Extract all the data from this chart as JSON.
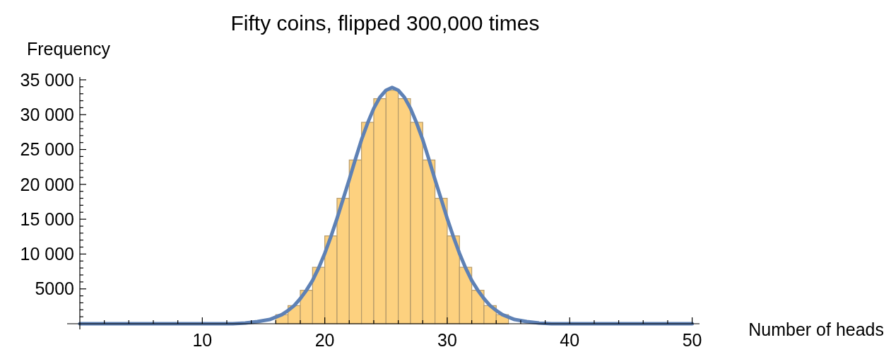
{
  "chart_data": {
    "type": "histogram",
    "title": "Fifty coins, flipped 300,000 times",
    "xlabel": "Number of heads",
    "ylabel": "Frequency",
    "series": [
      {
        "color": "#fdd17f",
        "bins": [
          16,
          17,
          18,
          19,
          20,
          21,
          22,
          23,
          24,
          25,
          26,
          27,
          28,
          29,
          30,
          31,
          32,
          33,
          34,
          35
        ],
        "values": [
          1300,
          2600,
          4800,
          8100,
          12600,
          18000,
          23500,
          28900,
          32300,
          33500,
          32300,
          28900,
          23500,
          18000,
          12600,
          8100,
          4800,
          2600,
          1300
        ]
      },
      {
        "type": "line",
        "color": "#5e81b5",
        "x": [
          0,
          5,
          10,
          12.5,
          13.5,
          14.5,
          15.5,
          16.5,
          17,
          17.5,
          18,
          18.5,
          19,
          19.5,
          20,
          20.5,
          21,
          21.5,
          22,
          22.5,
          23,
          23.5,
          24,
          24.5,
          25,
          25.5,
          26,
          26.5,
          27,
          27.5,
          28,
          28.5,
          29,
          29.5,
          30,
          30.5,
          31,
          31.5,
          32,
          32.5,
          33,
          33.5,
          34,
          34.5,
          35.5,
          36.5,
          37.5,
          38.5,
          40,
          45,
          50
        ],
        "values": [
          0,
          0,
          0,
          0,
          100,
          300,
          600,
          1300,
          1900,
          2600,
          3600,
          4800,
          6200,
          8000,
          10100,
          12500,
          15100,
          17900,
          20700,
          23600,
          26400,
          28800,
          30900,
          32500,
          33500,
          33900,
          33500,
          32500,
          30900,
          28800,
          26400,
          23600,
          20700,
          17900,
          15100,
          12500,
          10100,
          8000,
          6200,
          4800,
          3600,
          2600,
          1900,
          1300,
          600,
          300,
          100,
          0,
          0,
          0,
          0
        ]
      }
    ],
    "xlim": [
      0,
      50.6
    ],
    "ylim": [
      0,
      35400
    ],
    "xticks": [
      {
        "value": 2,
        "label": null
      },
      {
        "value": 4,
        "label": null
      },
      {
        "value": 6,
        "label": null
      },
      {
        "value": 8,
        "label": null
      },
      10,
      {
        "value": 12,
        "label": null
      },
      {
        "value": 14,
        "label": null
      },
      {
        "value": 16,
        "label": null
      },
      {
        "value": 18,
        "label": null
      },
      20,
      {
        "value": 22,
        "label": null
      },
      {
        "value": 24,
        "label": null
      },
      {
        "value": 26,
        "label": null
      },
      {
        "value": 28,
        "label": null
      },
      30,
      {
        "value": 32,
        "label": null
      },
      {
        "value": 34,
        "label": null
      },
      {
        "value": 36,
        "label": null
      },
      {
        "value": 38,
        "label": null
      },
      40,
      {
        "value": 42,
        "label": null
      },
      {
        "value": 44,
        "label": null
      },
      {
        "value": 46,
        "label": null
      },
      {
        "value": 48,
        "label": null
      },
      50
    ],
    "yticks": [
      {
        "value": 1000,
        "label": null
      },
      {
        "value": 2000,
        "label": null
      },
      {
        "value": 3000,
        "label": null
      },
      {
        "value": 4000,
        "label": null
      },
      5000,
      {
        "value": 6000,
        "label": null
      },
      {
        "value": 7000,
        "label": null
      },
      {
        "value": 8000,
        "label": null
      },
      {
        "value": 9000,
        "label": null
      },
      {
        "value": 10000,
        "label": "10 000"
      },
      {
        "value": 11000,
        "label": null
      },
      {
        "value": 12000,
        "label": null
      },
      {
        "value": 13000,
        "label": null
      },
      {
        "value": 14000,
        "label": null
      },
      {
        "value": 15000,
        "label": "15 000"
      },
      {
        "value": 16000,
        "label": null
      },
      {
        "value": 17000,
        "label": null
      },
      {
        "value": 18000,
        "label": null
      },
      {
        "value": 19000,
        "label": null
      },
      {
        "value": 20000,
        "label": "20 000"
      },
      {
        "value": 21000,
        "label": null
      },
      {
        "value": 22000,
        "label": null
      },
      {
        "value": 23000,
        "label": null
      },
      {
        "value": 24000,
        "label": null
      },
      {
        "value": 25000,
        "label": "25 000"
      },
      {
        "value": 26000,
        "label": null
      },
      {
        "value": 27000,
        "label": null
      },
      {
        "value": 28000,
        "label": null
      },
      {
        "value": 29000,
        "label": null
      },
      {
        "value": 30000,
        "label": "30 000"
      },
      {
        "value": 31000,
        "label": null
      },
      {
        "value": 32000,
        "label": null
      },
      {
        "value": 33000,
        "label": null
      },
      {
        "value": 34000,
        "label": null
      },
      {
        "value": 35000,
        "label": "35 000"
      }
    ],
    "grid": false
  }
}
